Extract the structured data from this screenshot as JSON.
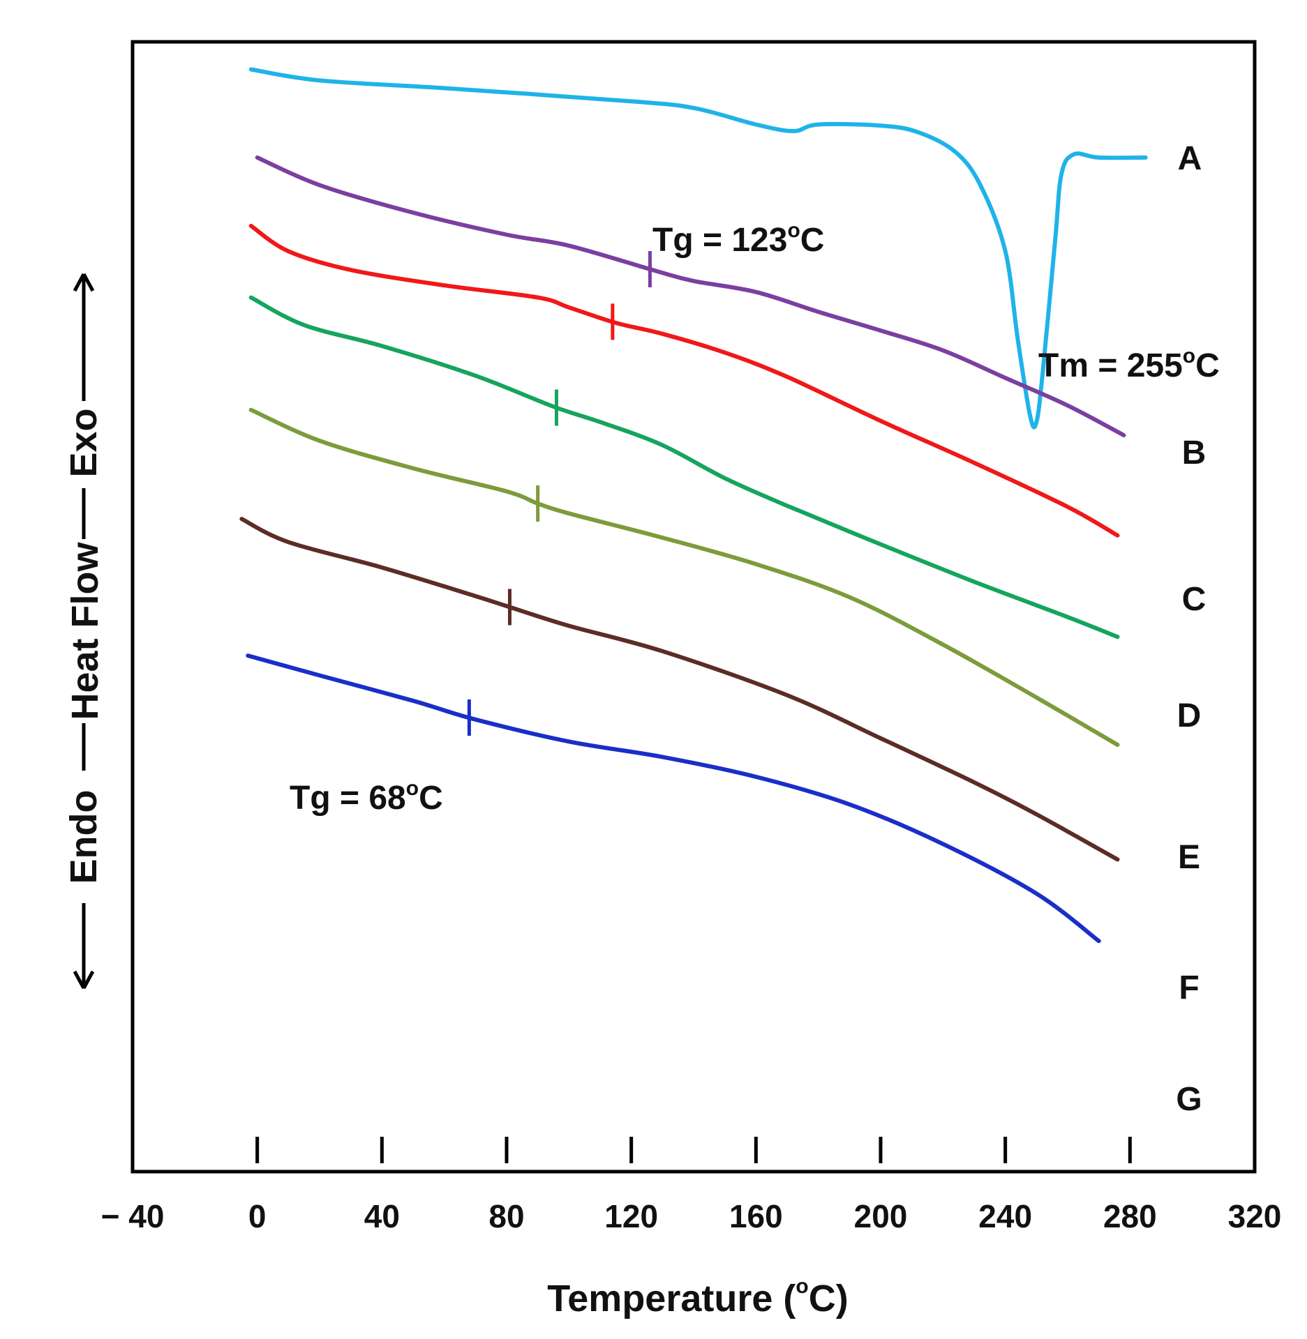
{
  "chart_data": {
    "type": "line",
    "title": "",
    "xlabel": "Temperature (",
    "xlabel_sup": "o",
    "xlabel_end": "C)",
    "ylabel": "Heat Flow",
    "ylabel_exo": "Exo",
    "ylabel_endo": "Endo",
    "xlim": [
      -40,
      320
    ],
    "xticks": [
      -40,
      0,
      40,
      80,
      120,
      160,
      200,
      240,
      280,
      320
    ],
    "xtick_labels": [
      "− 40",
      "0",
      "40",
      "80",
      "120",
      "160",
      "200",
      "240",
      "280",
      "320"
    ],
    "ylim": [
      0,
      100
    ],
    "grid": false,
    "series": [
      {
        "name": "A",
        "color": "#1fb3e8",
        "x": [
          -2,
          20,
          60,
          120,
          140,
          160,
          172,
          180,
          200,
          212,
          224,
          232,
          240,
          244,
          248,
          250,
          252,
          256,
          258,
          262,
          270,
          285
        ],
        "y": [
          97.5,
          96.5,
          95.8,
          94.6,
          94.0,
          92.5,
          91.9,
          92.5,
          92.4,
          91.8,
          90.0,
          87.0,
          81.0,
          73.0,
          66.0,
          65.5,
          70.0,
          82.0,
          88.0,
          89.8,
          89.5,
          89.5
        ],
        "tg_mark_x": null
      },
      {
        "name": "B",
        "color": "#7b3fa0",
        "x": [
          0,
          20,
          50,
          80,
          100,
          128,
          140,
          160,
          180,
          200,
          220,
          240,
          260,
          278
        ],
        "y": [
          89.5,
          87.0,
          84.5,
          82.5,
          81.5,
          79.2,
          78.3,
          77.3,
          75.5,
          73.8,
          72.0,
          69.5,
          67.0,
          64.3
        ],
        "tg_mark_x": 126
      },
      {
        "name": "C",
        "color": "#f01818",
        "x": [
          -2,
          10,
          30,
          60,
          90,
          100,
          115,
          130,
          150,
          170,
          200,
          230,
          260,
          276
        ],
        "y": [
          83.3,
          81.0,
          79.3,
          77.9,
          76.8,
          75.9,
          74.5,
          73.5,
          71.8,
          69.6,
          65.6,
          61.8,
          57.8,
          55.2
        ],
        "tg_mark_x": 114
      },
      {
        "name": "D",
        "color": "#16a45e",
        "x": [
          -2,
          15,
          40,
          70,
          95,
          110,
          130,
          150,
          170,
          200,
          230,
          260,
          276
        ],
        "y": [
          76.8,
          74.3,
          72.4,
          69.7,
          66.9,
          65.5,
          63.4,
          60.4,
          57.9,
          54.4,
          51.0,
          47.8,
          46.0
        ],
        "tg_mark_x": 96
      },
      {
        "name": "E",
        "color": "#7c9c3c",
        "x": [
          -2,
          20,
          50,
          80,
          90,
          100,
          130,
          160,
          190,
          220,
          250,
          276
        ],
        "y": [
          66.6,
          63.8,
          61.3,
          59.2,
          58.1,
          57.2,
          55.0,
          52.6,
          49.6,
          45.3,
          40.5,
          36.2
        ],
        "tg_mark_x": 90
      },
      {
        "name": "F",
        "color": "#5c2c26",
        "x": [
          -5,
          10,
          40,
          70,
          81,
          100,
          130,
          170,
          200,
          230,
          250,
          276
        ],
        "y": [
          56.7,
          54.6,
          52.3,
          49.7,
          48.7,
          47.0,
          44.7,
          40.7,
          36.8,
          32.8,
          29.9,
          25.8
        ],
        "tg_mark_x": 81
      },
      {
        "name": "G",
        "color": "#1a2ec8",
        "x": [
          -3,
          20,
          50,
          70,
          100,
          130,
          160,
          190,
          220,
          250,
          270
        ],
        "y": [
          44.3,
          42.5,
          40.2,
          38.5,
          36.5,
          35.1,
          33.3,
          30.8,
          27.2,
          22.7,
          18.4
        ],
        "tg_mark_x": 68
      }
    ],
    "annotations": [
      {
        "text": "Tg = 123",
        "sup": "o",
        "end": "C"
      },
      {
        "text": "Tm = 255",
        "sup": "o",
        "end": "C"
      },
      {
        "text": "Tg = 68",
        "sup": "o",
        "end": "C"
      }
    ]
  }
}
